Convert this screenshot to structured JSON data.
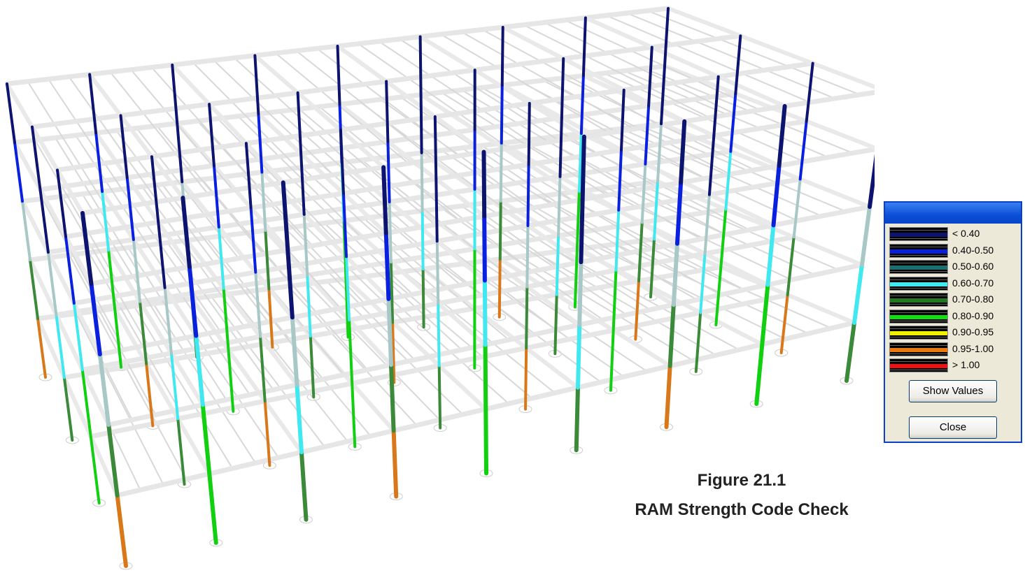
{
  "legend": {
    "items": [
      {
        "label": "< 0.40",
        "color": "#0d1470"
      },
      {
        "label": "0.40-0.50",
        "color": "#0a20e0"
      },
      {
        "label": "0.50-0.60",
        "color": "#1a7070"
      },
      {
        "label": "0.60-0.70",
        "color": "#40e8f0"
      },
      {
        "label": "0.70-0.80",
        "color": "#1e7a1e"
      },
      {
        "label": "0.80-0.90",
        "color": "#10e010"
      },
      {
        "label": "0.90-0.95",
        "color": "#f0f000"
      },
      {
        "label": "0.95-1.00",
        "color": "#e87810"
      },
      {
        "label": "> 1.00",
        "color": "#f01010"
      }
    ]
  },
  "buttons": {
    "show_values": "Show Values",
    "close": "Close"
  },
  "caption": {
    "figure": "Figure 21.1",
    "title": "RAM Strength Code Check"
  }
}
